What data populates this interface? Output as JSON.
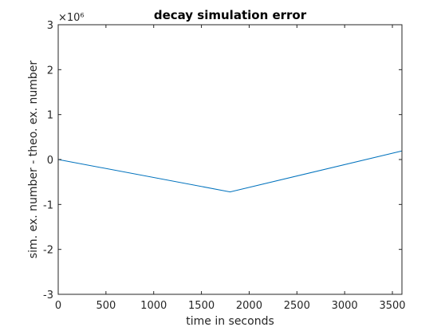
{
  "chart_data": {
    "type": "line",
    "title": "decay simulation error",
    "xlabel": "time in seconds",
    "ylabel": "sim. ex. number - theo. ex. number",
    "xlim": [
      0,
      3600
    ],
    "ylim": [
      -3,
      3
    ],
    "y_scale_exponent": "×10⁶",
    "grid": false,
    "x_ticks": [
      0,
      500,
      1000,
      1500,
      2000,
      2500,
      3000,
      3500
    ],
    "x_tick_labels": [
      "0",
      "500",
      "1000",
      "1500",
      "2000",
      "2500",
      "3000",
      "3500"
    ],
    "y_ticks": [
      -3,
      -2,
      -1,
      0,
      1,
      2,
      3
    ],
    "y_tick_labels": [
      "-3",
      "-2",
      "-1",
      "0",
      "1",
      "2",
      "3"
    ],
    "series": [
      {
        "color": "#0072bd",
        "x": [
          0,
          1800,
          3600
        ],
        "y": [
          0,
          -0.72,
          0.19
        ]
      }
    ]
  }
}
